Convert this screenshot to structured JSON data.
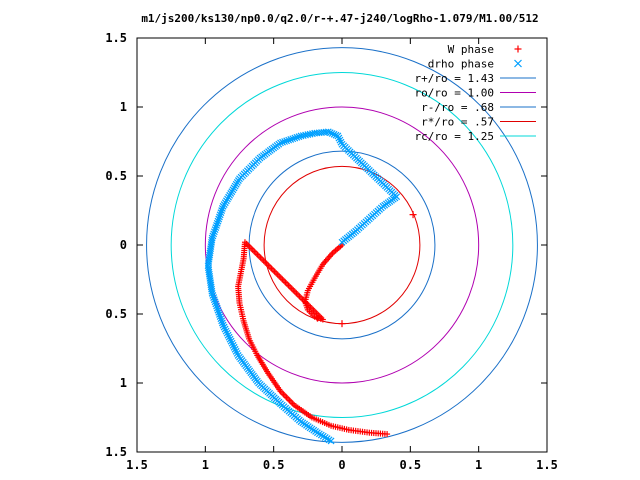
{
  "chart_data": {
    "type": "scatter",
    "title": "m1/js200/ks130/np0.0/q2.0/r-+.47-j240/logRho-1.079/M1.00/512",
    "xlim": [
      -1.5,
      1.5
    ],
    "ylim": [
      -1.5,
      1.5
    ],
    "x_tick_values": [
      -1.5,
      -1,
      -0.5,
      0,
      0.5,
      1,
      1.5
    ],
    "x_tick_labels": [
      "1.5",
      "1",
      "0.5",
      "0",
      "0.5",
      "1",
      "1.5"
    ],
    "y_tick_values": [
      1.5,
      1,
      0.5,
      0,
      -0.5,
      -1,
      -1.5
    ],
    "y_tick_labels": [
      "1.5",
      "1",
      "0.5",
      "0",
      "0.5",
      "1",
      "1.5"
    ],
    "grid": false,
    "legend_position": "top-right",
    "legend_title": "",
    "series": [
      {
        "name": "W phase",
        "marker": "plus",
        "color": "#ff0000",
        "polyline": [
          [
            0.0,
            0.0
          ],
          [
            -0.07,
            -0.06
          ],
          [
            -0.14,
            -0.14
          ],
          [
            -0.2,
            -0.24
          ],
          [
            -0.25,
            -0.33
          ],
          [
            -0.27,
            -0.41
          ],
          [
            -0.25,
            -0.47
          ],
          [
            -0.2,
            -0.52
          ],
          [
            -0.14,
            -0.54
          ],
          [
            -0.71,
            0.02
          ],
          [
            -0.72,
            -0.1
          ],
          [
            -0.76,
            -0.3
          ],
          [
            -0.75,
            -0.42
          ],
          [
            -0.72,
            -0.55
          ],
          [
            -0.68,
            -0.68
          ],
          [
            -0.62,
            -0.8
          ],
          [
            -0.54,
            -0.93
          ],
          [
            -0.45,
            -1.06
          ],
          [
            -0.35,
            -1.16
          ],
          [
            -0.22,
            -1.25
          ],
          [
            -0.08,
            -1.31
          ],
          [
            0.05,
            -1.34
          ],
          [
            0.2,
            -1.36
          ],
          [
            0.33,
            -1.37
          ]
        ],
        "points": [
          [
            0.52,
            0.22
          ],
          [
            0.0,
            -0.57
          ],
          [
            -0.18,
            -0.53
          ]
        ]
      },
      {
        "name": "drho phase",
        "marker": "cross",
        "color": "#00a0ff",
        "polyline": [
          [
            0.0,
            0.02
          ],
          [
            0.1,
            0.1
          ],
          [
            0.2,
            0.19
          ],
          [
            0.3,
            0.28
          ],
          [
            0.4,
            0.35
          ],
          [
            0.0,
            0.73
          ],
          [
            -0.03,
            0.79
          ],
          [
            -0.1,
            0.82
          ],
          [
            -0.2,
            0.81
          ],
          [
            -0.3,
            0.79
          ],
          [
            -0.45,
            0.74
          ],
          [
            -0.6,
            0.63
          ],
          [
            -0.75,
            0.48
          ],
          [
            -0.87,
            0.28
          ],
          [
            -0.95,
            0.05
          ],
          [
            -0.98,
            -0.15
          ],
          [
            -0.95,
            -0.35
          ],
          [
            -0.87,
            -0.58
          ],
          [
            -0.76,
            -0.8
          ],
          [
            -0.61,
            -1.0
          ],
          [
            -0.45,
            -1.15
          ],
          [
            -0.3,
            -1.28
          ],
          [
            -0.18,
            -1.36
          ],
          [
            -0.08,
            -1.42
          ]
        ],
        "points": []
      }
    ],
    "circles": [
      {
        "name": "r+/ro = 1.43",
        "radius": 1.43,
        "color": "#1a70c8"
      },
      {
        "name": "ro/ro = 1.00",
        "radius": 1.0,
        "color": "#b000b0"
      },
      {
        "name": "r-/ro = .68",
        "radius": 0.68,
        "color": "#1a70c8"
      },
      {
        "name": "r*/ro = .57",
        "radius": 0.57,
        "color": "#e00000"
      },
      {
        "name": "rc/ro = 1.25",
        "radius": 1.25,
        "color": "#00d8d8"
      }
    ]
  }
}
